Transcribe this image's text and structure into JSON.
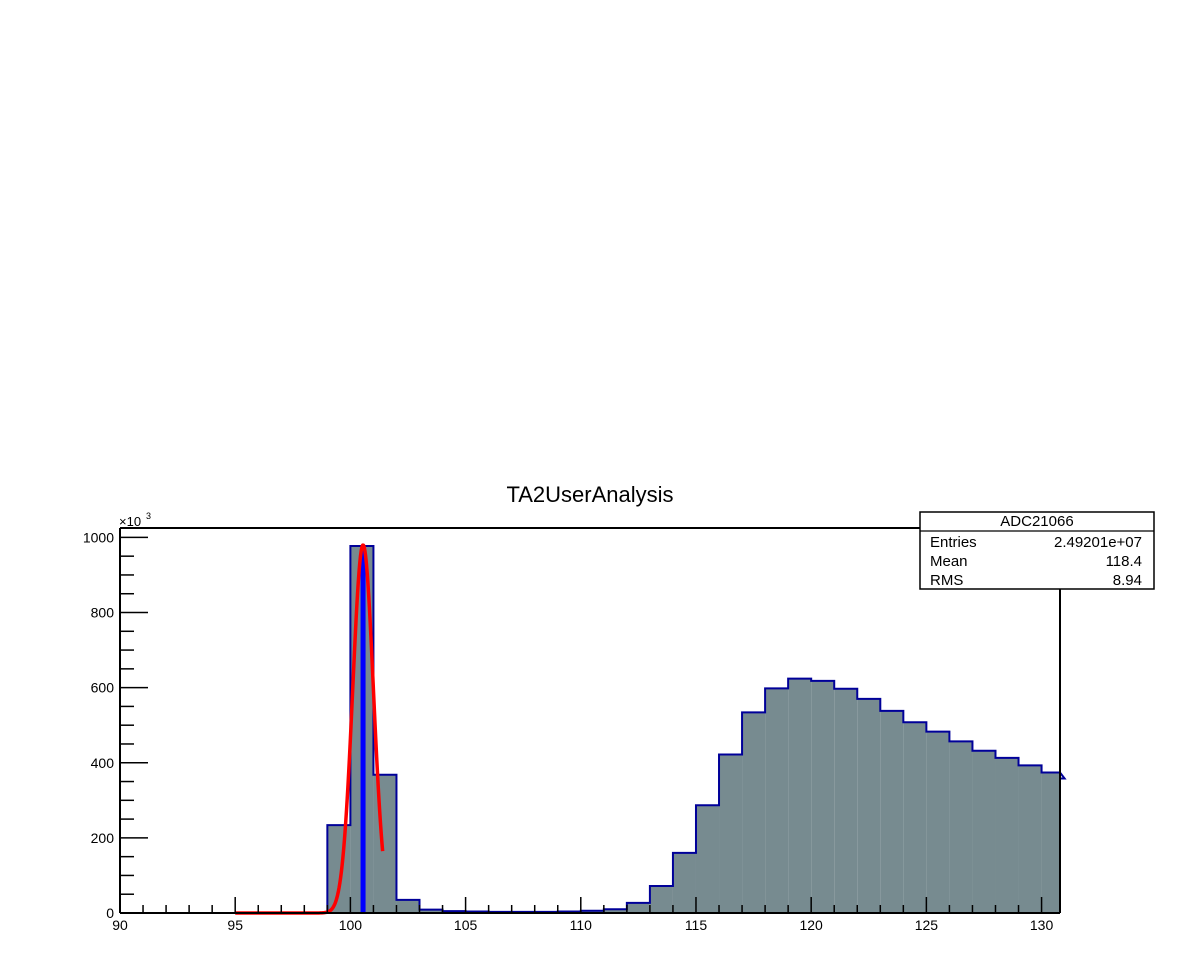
{
  "chart_data": {
    "type": "bar",
    "title": "TA2UserAnalysis",
    "xlabel": "",
    "ylabel": "",
    "y_multiplier_label": "×10",
    "y_multiplier_exponent": "3",
    "xlim": [
      90,
      130.8
    ],
    "ylim": [
      0,
      1025
    ],
    "x_ticks": [
      90,
      95,
      100,
      105,
      110,
      115,
      120,
      125,
      130
    ],
    "y_ticks": [
      0,
      200,
      400,
      600,
      800,
      1000
    ],
    "bins": {
      "low_edge": 90,
      "width": 1,
      "values": [
        0,
        0,
        0,
        0,
        0,
        0,
        0,
        0,
        1,
        234,
        977,
        368,
        35,
        9,
        5,
        4,
        3,
        3,
        3,
        4,
        6,
        10,
        27,
        72,
        160,
        287,
        422,
        534,
        598,
        624,
        618,
        597,
        570,
        538,
        508,
        483,
        457,
        432,
        413,
        393,
        374,
        358
      ]
    },
    "fit_curve": {
      "name": "gaus",
      "color": "#ff0000",
      "constant": 980,
      "mean": 100.55,
      "sigma": 0.45,
      "x_range": [
        95,
        101.4
      ]
    },
    "marker_line": {
      "x": 100.55,
      "color": "#0000ff"
    },
    "fill_color": "#778b90",
    "line_color": "#000099",
    "stats_box": {
      "name": "ADC21066",
      "rows": [
        {
          "label": "Entries",
          "value": "2.49201e+07"
        },
        {
          "label": "Mean",
          "value": "118.4"
        },
        {
          "label": "RMS",
          "value": "8.94"
        }
      ]
    }
  }
}
